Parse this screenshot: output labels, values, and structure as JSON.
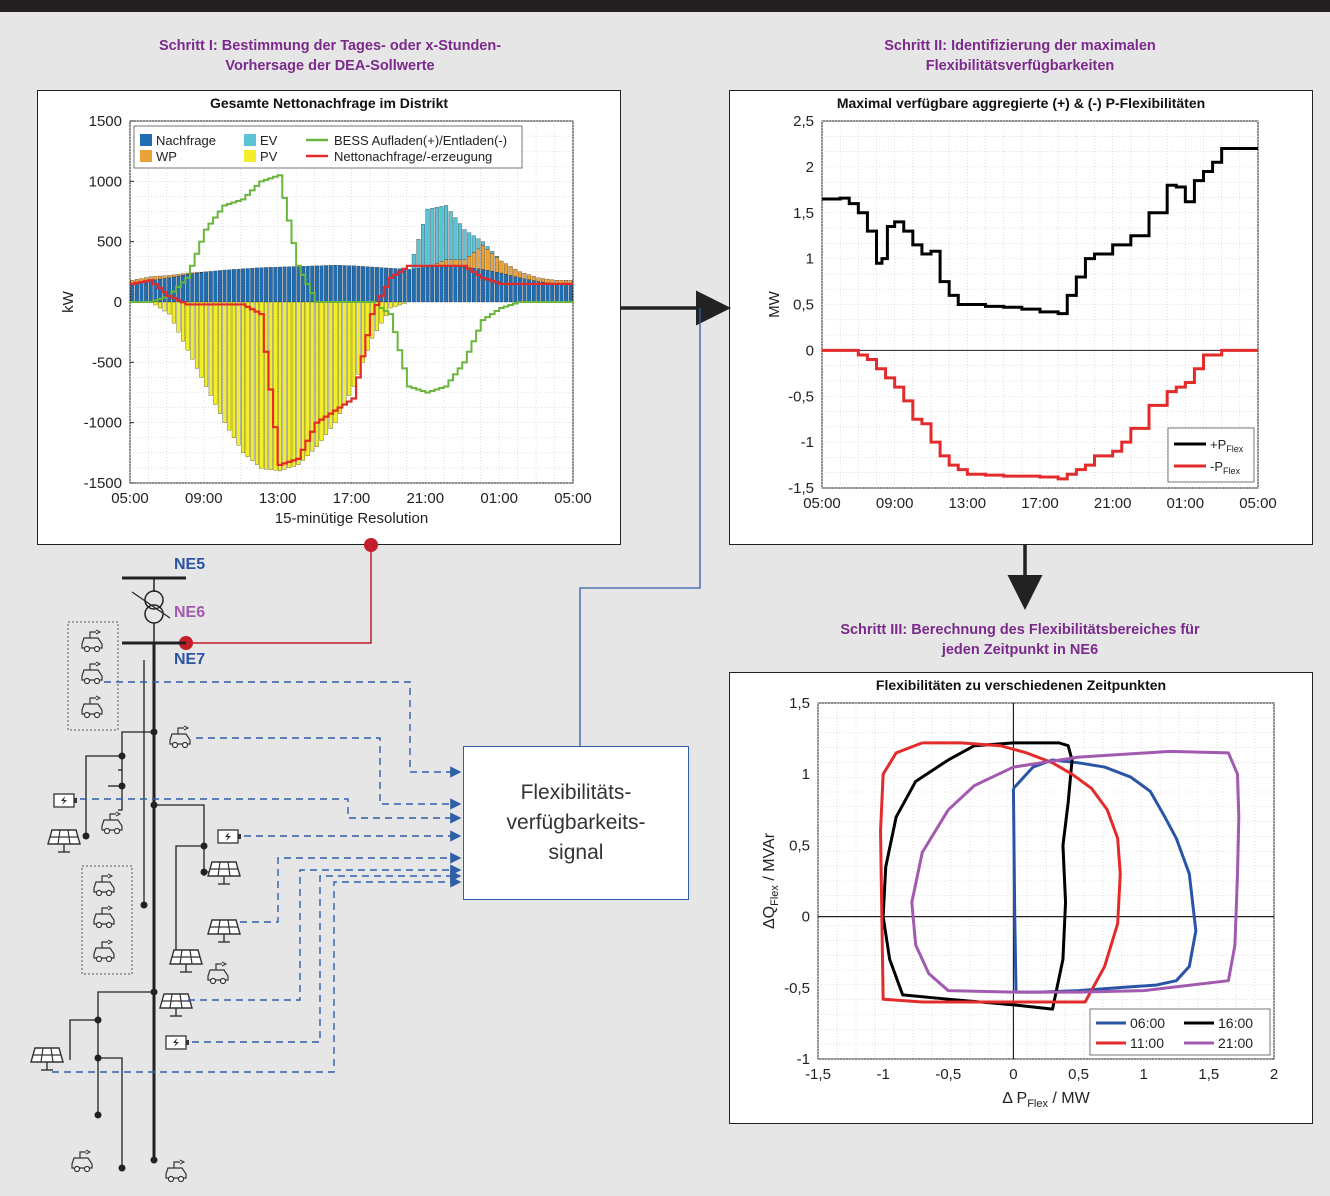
{
  "step1": {
    "title_line1": "Schritt I: Bestimmung der Tages- oder x-Stunden-",
    "title_line2": "Vorhersage der DEA-Sollwerte"
  },
  "step2": {
    "title_line1": "Schritt II: Identifizierung der maximalen",
    "title_line2": "Flexibilitätsverfügbarkeiten"
  },
  "step3": {
    "title_line1": "Schritt III: Berechnung des Flexibilitätsbereiches für",
    "title_line2": "jeden Zeitpunkt in NE6"
  },
  "signal_box": {
    "label": "Flexibilitäts-\nverfügbarkeits-\nsignal"
  },
  "grid_levels": {
    "ne5": "NE5",
    "ne6": "NE6",
    "ne7": "NE7"
  },
  "colors": {
    "step_title": "#7b2a8c",
    "ne5": "#2a55a6",
    "ne6": "#a25ab0",
    "ne7": "#2a55a6",
    "signal_line": "#2f5fa8",
    "feeder_dot": "#c41e2a"
  },
  "chart_data": [
    {
      "type": "bar",
      "title": "Gesamte Nettonachfrage im Distrikt",
      "xlabel": "15-minütige Resolution",
      "ylabel": "kW",
      "ylim": [
        -1500,
        1500
      ],
      "yticks": [
        "1500",
        "1000",
        "500",
        "0",
        "-500",
        "-1000",
        "-1500"
      ],
      "xticks": [
        "05:00",
        "09:00",
        "13:00",
        "17:00",
        "21:00",
        "01:00",
        "05:00"
      ],
      "grid": true,
      "legend_position": "top-left",
      "legend": [
        {
          "name": "Nachfrage",
          "color": "#1f6eb4"
        },
        {
          "name": "EV",
          "color": "#5bc3d6"
        },
        {
          "name": "BESS Aufladen(+)/Entladen(-)",
          "color": "#6bb53f"
        },
        {
          "name": "WP",
          "color": "#e9a33a"
        },
        {
          "name": "PV",
          "color": "#f2ee2a"
        },
        {
          "name": "Nettonachfrage/-erzeugung",
          "color": "#e32b2b"
        }
      ],
      "x_hours": [
        5,
        6,
        7,
        8,
        9,
        10,
        11,
        12,
        13,
        14,
        15,
        16,
        17,
        18,
        19,
        20,
        21,
        22,
        23,
        24,
        25,
        26,
        27,
        28,
        29
      ],
      "demand": [
        150,
        180,
        200,
        230,
        250,
        265,
        275,
        285,
        290,
        295,
        300,
        305,
        300,
        290,
        280,
        270,
        290,
        300,
        290,
        270,
        240,
        200,
        170,
        150,
        150
      ],
      "ev": [
        0,
        0,
        0,
        0,
        0,
        0,
        0,
        0,
        0,
        0,
        0,
        0,
        0,
        0,
        0,
        0,
        480,
        450,
        250,
        30,
        0,
        0,
        0,
        0,
        0
      ],
      "wp": [
        30,
        30,
        20,
        10,
        0,
        0,
        0,
        0,
        0,
        0,
        0,
        0,
        0,
        0,
        0,
        0,
        0,
        50,
        60,
        200,
        100,
        50,
        30,
        30,
        30
      ],
      "pv": [
        0,
        0,
        -100,
        -400,
        -700,
        -1000,
        -1250,
        -1380,
        -1400,
        -1350,
        -1200,
        -1000,
        -700,
        -300,
        -50,
        0,
        0,
        0,
        0,
        0,
        0,
        0,
        0,
        0,
        0
      ],
      "bess": [
        0,
        0,
        50,
        200,
        600,
        800,
        850,
        1000,
        1050,
        300,
        0,
        0,
        0,
        0,
        -100,
        -700,
        -750,
        -700,
        -500,
        -150,
        -50,
        0,
        0,
        0,
        0
      ],
      "net": [
        150,
        180,
        50,
        -20,
        -20,
        -20,
        -20,
        -100,
        -1350,
        -1300,
        -1000,
        -900,
        -800,
        -100,
        200,
        300,
        300,
        300,
        300,
        200,
        150,
        150,
        150,
        150,
        150
      ]
    },
    {
      "type": "line",
      "title": "Maximal verfügbare aggregierte (+) & (-) P-Flexibilitäten",
      "xlabel": "",
      "ylabel": "MW",
      "ylim": [
        -1.5,
        2.5
      ],
      "yticks": [
        "2,5",
        "2",
        "1,5",
        "1",
        "0,5",
        "0",
        "-0,5",
        "-1",
        "-1,5"
      ],
      "xticks": [
        "05:00",
        "09:00",
        "13:00",
        "17:00",
        "21:00",
        "01:00",
        "05:00"
      ],
      "legend_position": "bottom-right",
      "series": [
        {
          "name": "+P",
          "sub": "Flex",
          "color": "#000000",
          "x": [
            5,
            6,
            6.5,
            7,
            7.5,
            8,
            8.3,
            8.6,
            9,
            9.5,
            10,
            10.5,
            11,
            11.5,
            12,
            12.5,
            13,
            14,
            15,
            16,
            17,
            18,
            18.5,
            19,
            19.5,
            20,
            21,
            22,
            23,
            24,
            24.5,
            25,
            25.5,
            26,
            26.5,
            27,
            27.5,
            28,
            29
          ],
          "y": [
            1.65,
            1.66,
            1.6,
            1.5,
            1.3,
            0.95,
            1.0,
            1.35,
            1.4,
            1.3,
            1.15,
            1.05,
            1.08,
            0.75,
            0.6,
            0.5,
            0.5,
            0.48,
            0.47,
            0.45,
            0.42,
            0.4,
            0.6,
            0.8,
            1.0,
            1.05,
            1.15,
            1.25,
            1.5,
            1.8,
            1.78,
            1.62,
            1.85,
            1.95,
            2.05,
            2.2,
            2.2,
            2.2,
            2.2
          ]
        },
        {
          "name": "-P",
          "sub": "Flex",
          "color": "#e32b2b",
          "x": [
            5,
            6,
            7,
            7.5,
            8,
            8.5,
            9,
            9.5,
            10,
            10.5,
            11,
            11.5,
            12,
            12.5,
            13,
            14,
            15,
            16,
            17,
            18,
            18.5,
            19,
            19.5,
            20,
            21,
            21.5,
            22,
            23,
            24,
            24.5,
            25,
            25.5,
            26,
            27,
            28,
            29
          ],
          "y": [
            0,
            0,
            -0.05,
            -0.1,
            -0.2,
            -0.3,
            -0.4,
            -0.55,
            -0.75,
            -0.8,
            -1.0,
            -1.15,
            -1.25,
            -1.3,
            -1.35,
            -1.36,
            -1.37,
            -1.37,
            -1.38,
            -1.4,
            -1.35,
            -1.3,
            -1.25,
            -1.15,
            -1.1,
            -1.0,
            -0.85,
            -0.6,
            -0.45,
            -0.4,
            -0.35,
            -0.2,
            -0.05,
            0,
            0,
            0
          ]
        }
      ]
    },
    {
      "type": "line",
      "title": "Flexibilitäten zu verschiedenen Zeitpunkten",
      "xlabel": "Δ P",
      "xlabel_sub": "Flex",
      "xlabel_unit": " / MW",
      "ylabel": "ΔQ",
      "ylabel_sub": "Flex",
      "ylabel_unit": " / MVAr",
      "xlim": [
        -1.5,
        2
      ],
      "ylim": [
        -1,
        1.5
      ],
      "xticks": [
        "-1,5",
        "-1",
        "-0,5",
        "0",
        "0,5",
        "1",
        "1,5",
        "2"
      ],
      "yticks": [
        "1,5",
        "1",
        "0,5",
        "0",
        "-0,5",
        "-1"
      ],
      "legend_position": "bottom-right",
      "series": [
        {
          "name": "06:00",
          "color": "#2a55a6",
          "x": [
            0,
            0.05,
            0.15,
            0.3,
            0.5,
            0.7,
            0.9,
            1.05,
            1.15,
            1.25,
            1.35,
            1.4,
            1.35,
            1.25,
            1.1,
            0.8,
            0.5,
            0.2,
            0.02,
            0.01,
            0
          ],
          "y": [
            0.9,
            0.95,
            1.05,
            1.1,
            1.08,
            1.05,
            0.98,
            0.88,
            0.72,
            0.55,
            0.3,
            -0.1,
            -0.35,
            -0.45,
            -0.48,
            -0.5,
            -0.52,
            -0.53,
            -0.53,
            0,
            0.9
          ]
        },
        {
          "name": "16:00",
          "color": "#000000",
          "x": [
            -0.5,
            -0.75,
            -0.9,
            -0.98,
            -1.0,
            -0.95,
            -0.85,
            -0.5,
            0,
            0.3,
            0.38,
            0.4,
            0.38,
            0.42,
            0.45,
            0.42,
            0.35,
            0,
            -0.3,
            -0.5
          ],
          "y": [
            1.1,
            0.95,
            0.7,
            0.35,
            0,
            -0.3,
            -0.55,
            -0.58,
            -0.62,
            -0.65,
            -0.3,
            0.1,
            0.5,
            0.8,
            1.1,
            1.2,
            1.22,
            1.22,
            1.2,
            1.1
          ]
        },
        {
          "name": "11:00",
          "color": "#e32b2b",
          "x": [
            -0.7,
            -0.9,
            -1.0,
            -1.02,
            -1.0,
            -0.7,
            -0.3,
            0,
            0.2,
            0.55,
            0.7,
            0.8,
            0.82,
            0.8,
            0.72,
            0.6,
            0.45,
            0.3,
            0.1,
            -0.1,
            -0.4,
            -0.7
          ],
          "y": [
            1.22,
            1.15,
            1.0,
            0.6,
            -0.58,
            -0.6,
            -0.6,
            -0.6,
            -0.6,
            -0.6,
            -0.35,
            -0.05,
            0.3,
            0.55,
            0.75,
            0.9,
            1.0,
            1.08,
            1.15,
            1.2,
            1.22,
            1.22
          ]
        },
        {
          "name": "21:00",
          "color": "#a25ab0",
          "x": [
            -0.5,
            -0.7,
            -0.78,
            -0.75,
            -0.65,
            -0.5,
            0,
            0.5,
            1.0,
            1.65,
            1.7,
            1.72,
            1.73,
            1.72,
            1.65,
            1.2,
            0.5,
            0,
            -0.3,
            -0.5
          ],
          "y": [
            0.75,
            0.45,
            0.1,
            -0.2,
            -0.4,
            -0.52,
            -0.53,
            -0.53,
            -0.52,
            -0.45,
            -0.2,
            0.3,
            0.7,
            1.0,
            1.15,
            1.16,
            1.12,
            1.05,
            0.92,
            0.75
          ]
        }
      ]
    }
  ]
}
